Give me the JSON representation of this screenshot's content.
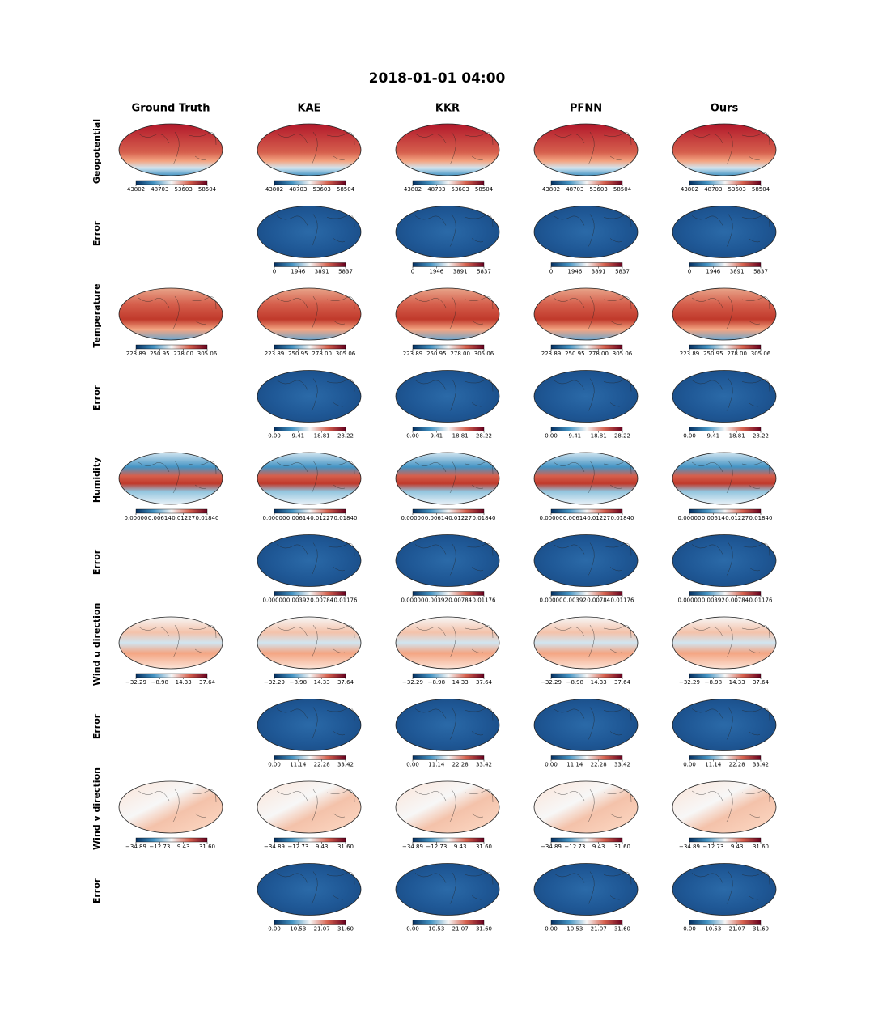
{
  "title": "2018-01-01 04:00",
  "columns": [
    "Ground Truth",
    "KAE",
    "KKR",
    "PFNN",
    "Ours"
  ],
  "rows": [
    {
      "label": "Geopotential",
      "colorbar_ticks": [
        "43802",
        "48703",
        "53603",
        "58504"
      ]
    },
    {
      "label": "Error",
      "colorbar_ticks": [
        "0",
        "1946",
        "3891",
        "5837"
      ]
    },
    {
      "label": "Temperature",
      "colorbar_ticks": [
        "223.89",
        "250.95",
        "278.00",
        "305.06"
      ]
    },
    {
      "label": "Error",
      "colorbar_ticks": [
        "0.00",
        "9.41",
        "18.81",
        "28.22"
      ]
    },
    {
      "label": "Humidity",
      "colorbar_ticks": [
        "0.00000",
        "0.00614",
        "0.01227",
        "0.01840"
      ]
    },
    {
      "label": "Error",
      "colorbar_ticks": [
        "0.00000",
        "0.00392",
        "0.00784",
        "0.01176"
      ]
    },
    {
      "label": "Wind u direction",
      "colorbar_ticks": [
        "−32.29",
        "−8.98",
        "14.33",
        "37.64"
      ]
    },
    {
      "label": "Error",
      "colorbar_ticks": [
        "0.00",
        "11.14",
        "22.28",
        "33.42"
      ]
    },
    {
      "label": "Wind v direction",
      "colorbar_ticks": [
        "−34.89",
        "−12.73",
        "9.43",
        "31.60"
      ]
    },
    {
      "label": "Error",
      "colorbar_ticks": [
        "0.00",
        "10.53",
        "21.07",
        "31.60"
      ]
    }
  ]
}
